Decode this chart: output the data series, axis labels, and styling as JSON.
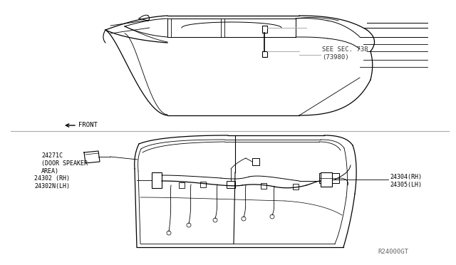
{
  "background_color": "#ffffff",
  "line_color": "#000000",
  "text_color": "#000000",
  "gray_line": "#aaaaaa",
  "annotations": {
    "see_sec": "SEE SEC. 738\n(73980)",
    "front": "FRONT",
    "part1": "24271C\n(DOOR SPEAKER\nAREA)",
    "part2": "24302 (RH)\n24302N(LH)",
    "part3": "24304(RH)\n24305(LH)"
  },
  "watermark": "R24000GT",
  "fig_width": 6.4,
  "fig_height": 3.72,
  "dpi": 100
}
